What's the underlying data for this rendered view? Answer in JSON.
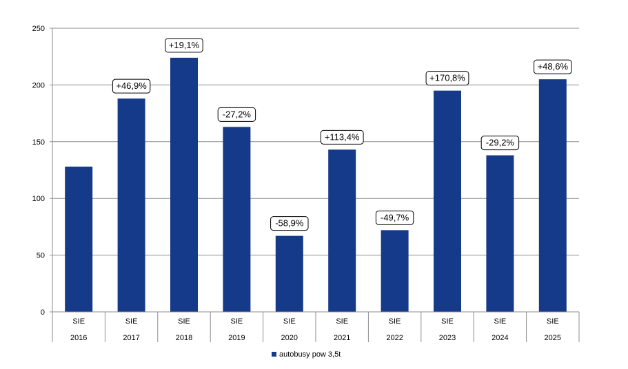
{
  "chart_data": {
    "type": "bar",
    "categories_month": [
      "SIE",
      "SIE",
      "SIE",
      "SIE",
      "SIE",
      "SIE",
      "SIE",
      "SIE",
      "SIE",
      "SIE"
    ],
    "categories_year": [
      "2016",
      "2017",
      "2018",
      "2019",
      "2020",
      "2021",
      "2022",
      "2023",
      "2024",
      "2025"
    ],
    "series": [
      {
        "name": "autobusy pow 3,5t",
        "color": "#163a8a",
        "values": [
          128,
          188,
          224,
          163,
          67,
          143,
          72,
          195,
          138,
          205
        ]
      }
    ],
    "change_labels": [
      "",
      "+46,9%",
      "+19,1%",
      "-27,2%",
      "-58,9%",
      "+113,4%",
      "-49,7%",
      "+170,8%",
      "-29,2%",
      "+48,6%"
    ],
    "y_ticks": [
      "0",
      "50",
      "100",
      "150",
      "200",
      "250"
    ],
    "ylim": [
      0,
      250
    ],
    "grid": true,
    "legend_position": "bottom"
  }
}
